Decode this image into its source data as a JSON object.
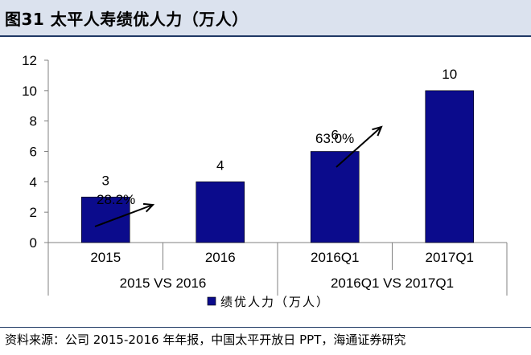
{
  "title": "图31 太平人寿绩优人力（万人）",
  "source": "资料来源：公司 2015-2016 年年报，中国太平开放日 PPT，海通证券研究",
  "chart_data": {
    "type": "bar",
    "categories": [
      "2015",
      "2016",
      "2016Q1",
      "2017Q1"
    ],
    "groups": [
      {
        "label": "2015 VS 2016",
        "categories": [
          "2015",
          "2016"
        ]
      },
      {
        "label": "2016Q1 VS 2017Q1",
        "categories": [
          "2016Q1",
          "2017Q1"
        ]
      }
    ],
    "series": [
      {
        "name": "绩优人力（万人）",
        "values": [
          3,
          4,
          6,
          10
        ],
        "color": "#0b0b8c"
      }
    ],
    "data_labels": [
      "3",
      "4",
      "6",
      "10"
    ],
    "annotations": [
      {
        "text": "28.2%",
        "from": "2015",
        "to": "2016"
      },
      {
        "text": "63.0%",
        "from": "2016Q1",
        "to": "2017Q1"
      }
    ],
    "yticks": [
      "0",
      "2",
      "4",
      "6",
      "8",
      "10",
      "12"
    ],
    "ylim": [
      0,
      12
    ],
    "legend_position": "bottom",
    "grid": false
  }
}
